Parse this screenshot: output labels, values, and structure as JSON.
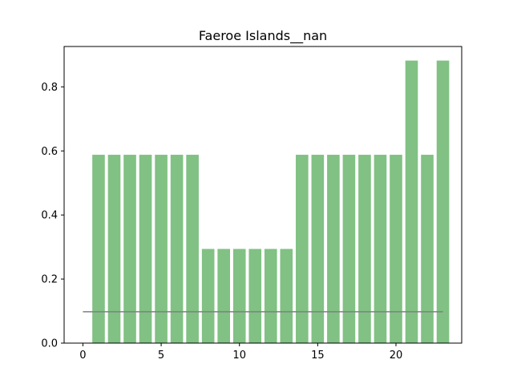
{
  "chart_data": {
    "type": "bar",
    "title": "Faeroe Islands__nan",
    "xlabel": "",
    "ylabel": "",
    "x": [
      1,
      2,
      3,
      4,
      5,
      6,
      7,
      8,
      9,
      10,
      11,
      12,
      13,
      14,
      15,
      16,
      17,
      18,
      19,
      20,
      21,
      22,
      23
    ],
    "values": [
      0.588,
      0.588,
      0.588,
      0.588,
      0.588,
      0.588,
      0.588,
      0.294,
      0.294,
      0.294,
      0.294,
      0.294,
      0.294,
      0.588,
      0.588,
      0.588,
      0.588,
      0.588,
      0.588,
      0.588,
      0.882,
      0.588,
      0.882
    ],
    "reference_line": {
      "x_start": 0,
      "x_end": 23,
      "y": 0.098,
      "color": "#808080"
    },
    "bar_color": "#81c184",
    "xlim": [
      -1.2,
      24.2
    ],
    "ylim": [
      0,
      0.926
    ],
    "xticks": [
      0,
      5,
      10,
      15,
      20
    ],
    "yticks": [
      0.0,
      0.2,
      0.4,
      0.6,
      0.8
    ],
    "xtick_labels": [
      "0",
      "5",
      "10",
      "15",
      "20"
    ],
    "ytick_labels": [
      "0.0",
      "0.2",
      "0.4",
      "0.6",
      "0.8"
    ],
    "grid": false,
    "legend": "none"
  }
}
